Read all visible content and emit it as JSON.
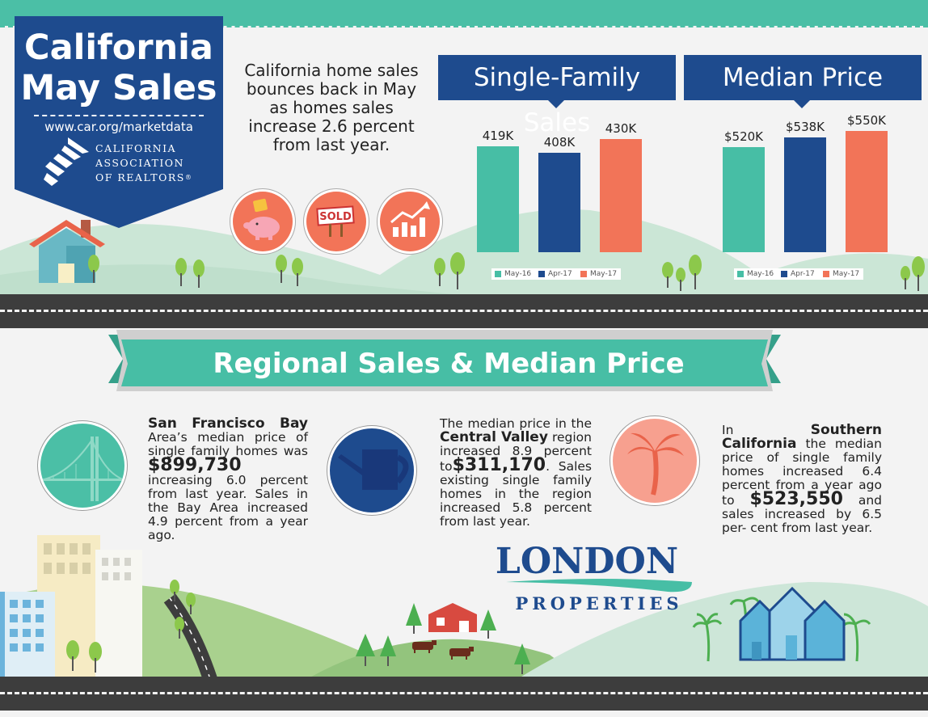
{
  "banner": {
    "title_line1": "California",
    "title_line2": "May Sales",
    "url": "www.car.org/marketdata",
    "org_line1": "CALIFORNIA",
    "org_line2": "ASSOCIATION",
    "org_line3": "OF REALTORS",
    "org_mark": "®"
  },
  "intro": {
    "text": "California home sales bounces back in May as homes sales increase 2.6 percent from last year."
  },
  "icons": {
    "items": [
      "piggy-bank-icon",
      "sold-sign-icon",
      "rising-chart-icon"
    ],
    "sold_text": "SOLD"
  },
  "colors": {
    "navy": "#1e4b8e",
    "teal": "#47bea5",
    "coral": "#f27458",
    "road": "#3d3d3d"
  },
  "chart_data": [
    {
      "type": "bar",
      "title": "Single-Family Sales",
      "categories": [
        "May-16",
        "Apr-17",
        "May-17"
      ],
      "values": [
        419,
        408,
        430
      ],
      "value_labels": [
        "419K",
        "408K",
        "430K"
      ],
      "legend": [
        "May-16",
        "Apr-17",
        "May-17"
      ],
      "legend_position": "bottom",
      "grid": false
    },
    {
      "type": "bar",
      "title": "Median Price",
      "categories": [
        "May-16",
        "Apr-17",
        "May-17"
      ],
      "values": [
        520,
        538,
        550
      ],
      "value_labels": [
        "$520K",
        "$538K",
        "$550K"
      ],
      "legend": [
        "May-16",
        "Apr-17",
        "May-17"
      ],
      "legend_position": "bottom",
      "grid": false
    }
  ],
  "section": {
    "title": "Regional Sales & Median Price"
  },
  "regions": {
    "sf": {
      "lead": "San Francisco Bay",
      "text1": "Area’s median price of single family homes was",
      "price": "$899,730",
      "text2": "increasing 6.0 percent from last year. Sales in the Bay Area increased 4.9 percent from a year ago."
    },
    "cv": {
      "text1": "The median price in the",
      "name": "Central Valley",
      "text2": "region increased 8.9 percent to",
      "price": "$311,170",
      "text3": ". Sales existing single family homes in the region increased 5.8 percent from last year."
    },
    "sc": {
      "text1": "In",
      "name": "Southern California",
      "text2": "the median price of single family homes increased 6.4 percent from a year ago to",
      "price": "$523,550",
      "text3": "and sales increased by 6.5 per- cent from last year."
    }
  },
  "london": {
    "name": "LONDON",
    "sub": "PROPERTIES"
  }
}
